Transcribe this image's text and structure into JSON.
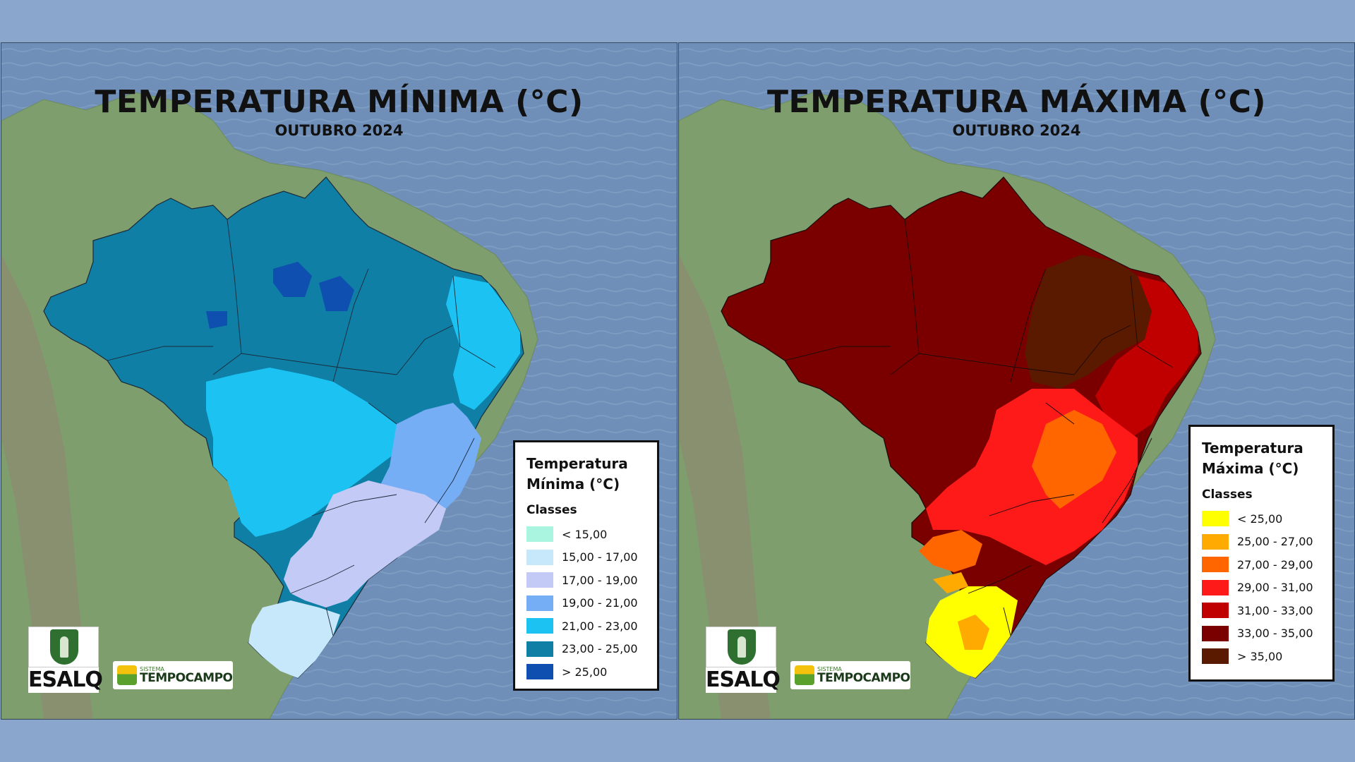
{
  "panels": [
    {
      "title": "TEMPERATURA MÍNIMA (°C)",
      "subtitle": "OUTUBRO 2024",
      "legend": {
        "title": "Temperatura\nMínima (°C)",
        "classes_label": "Classes",
        "items": [
          {
            "label": "< 15,00",
            "color": "#aaf5e0"
          },
          {
            "label": "15,00 - 17,00",
            "color": "#c7e7fb"
          },
          {
            "label": "17,00 - 19,00",
            "color": "#c3caf5"
          },
          {
            "label": "19,00 - 21,00",
            "color": "#76aef6"
          },
          {
            "label": "21,00 - 23,00",
            "color": "#1cc2f2"
          },
          {
            "label": "23,00 - 25,00",
            "color": "#0f7fa5"
          },
          {
            "label": "> 25,00",
            "color": "#0e4fb0"
          }
        ]
      }
    },
    {
      "title": "TEMPERATURA MÁXIMA (°C)",
      "subtitle": "OUTUBRO 2024",
      "legend": {
        "title": "Temperatura\nMáxima (°C)",
        "classes_label": "Classes",
        "items": [
          {
            "label": "< 25,00",
            "color": "#ffff00"
          },
          {
            "label": "25,00 - 27,00",
            "color": "#ffaa00"
          },
          {
            "label": "27,00 - 29,00",
            "color": "#ff6600"
          },
          {
            "label": "29,00 - 31,00",
            "color": "#ff1a1a"
          },
          {
            "label": "31,00 - 33,00",
            "color": "#c00000"
          },
          {
            "label": "33,00 - 35,00",
            "color": "#7a0000"
          },
          {
            "label": "> 35,00",
            "color": "#5a1a00"
          }
        ]
      }
    }
  ],
  "logos": {
    "esalq": "ESALQ",
    "tempocampo_small": "SISTEMA",
    "tempocampo_big": "TEMPOCAMPO"
  }
}
